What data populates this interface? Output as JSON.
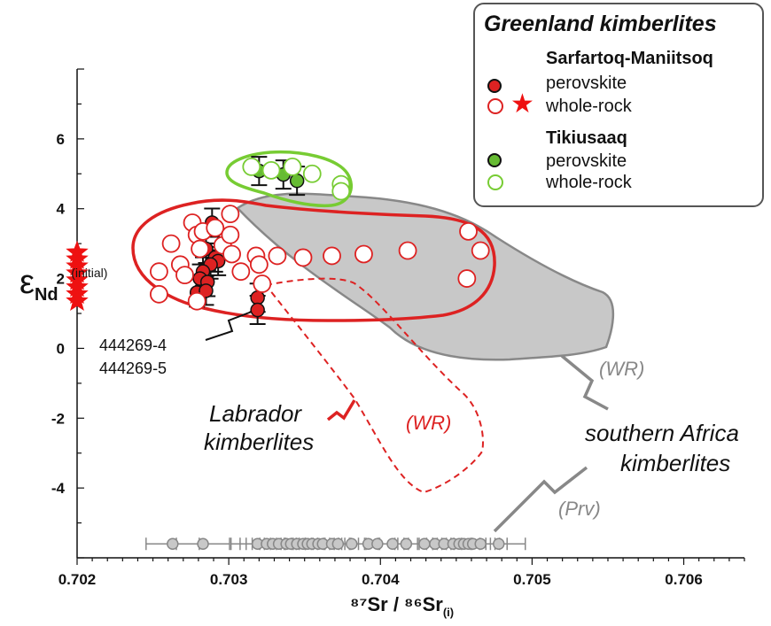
{
  "chart_data": {
    "type": "scatter",
    "xlabel": "⁸⁷Sr / ⁸⁶Sr",
    "xlabel_sub": "(i)",
    "ylabel": "ε",
    "ylabel_sub": "Nd",
    "ylabel_sup": "(initial)",
    "xlim": [
      0.702,
      0.7064
    ],
    "ylim": [
      -6,
      8
    ],
    "xticks": [
      0.702,
      0.703,
      0.704,
      0.705,
      0.706
    ],
    "xtick_labels": [
      "0.702",
      "0.703",
      "0.704",
      "0.705",
      "0.706"
    ],
    "yticks": [
      -4,
      -2,
      0,
      2,
      4,
      6
    ],
    "ytick_labels": [
      "-4",
      "-2",
      "0",
      "2",
      "4",
      "6"
    ],
    "colors": {
      "sarfartoq": "#dd2222",
      "tikiusaaq": "#77cc33",
      "tikiusaaq_fill": "#66bb33",
      "africa": "#888888",
      "africa_fill": "#c8c8c8"
    },
    "legend": {
      "title": "Greenland kimberlites",
      "groups": [
        {
          "name": "Sarfartoq-Maniitsoq",
          "entries": [
            "perovskite",
            "whole-rock"
          ]
        },
        {
          "name": "Tikiusaaq",
          "entries": [
            "perovskite",
            "whole-rock"
          ]
        }
      ],
      "placement": "top-right"
    },
    "annotations": {
      "samples": [
        "444269-4",
        "444269-5"
      ],
      "labrador": [
        "Labrador",
        "kimberlites"
      ],
      "labrador_wr": "(WR)",
      "africa": [
        "southern Africa",
        "kimberlites"
      ],
      "africa_wr": "(WR)",
      "africa_prv": "(Prv)"
    },
    "series": [
      {
        "name": "Sarfartoq-Maniitsoq perovskite",
        "marker": "filled-circle",
        "points": [
          [
            0.70289,
            3.6
          ],
          [
            0.70285,
            2.85
          ],
          [
            0.70291,
            2.6
          ],
          [
            0.70293,
            2.5
          ],
          [
            0.70288,
            2.4
          ],
          [
            0.70283,
            2.2
          ],
          [
            0.70281,
            2.0
          ],
          [
            0.70286,
            1.9
          ],
          [
            0.70279,
            1.6
          ],
          [
            0.70285,
            1.65
          ],
          [
            0.70319,
            1.45
          ],
          [
            0.70319,
            1.1
          ]
        ]
      },
      {
        "name": "Sarfartoq-Maniitsoq whole-rock",
        "marker": "open-circle",
        "points": [
          [
            0.70254,
            2.2
          ],
          [
            0.70262,
            3.0
          ],
          [
            0.70268,
            2.4
          ],
          [
            0.70276,
            3.6
          ],
          [
            0.70279,
            3.25
          ],
          [
            0.70281,
            2.85
          ],
          [
            0.70283,
            3.35
          ],
          [
            0.70271,
            2.1
          ],
          [
            0.70279,
            1.35
          ],
          [
            0.70291,
            3.45
          ],
          [
            0.70296,
            2.95
          ],
          [
            0.70301,
            3.85
          ],
          [
            0.70301,
            3.25
          ],
          [
            0.70302,
            2.7
          ],
          [
            0.70308,
            2.2
          ],
          [
            0.70318,
            2.65
          ],
          [
            0.7032,
            2.4
          ],
          [
            0.70322,
            1.85
          ],
          [
            0.70332,
            2.65
          ],
          [
            0.70349,
            2.6
          ],
          [
            0.70368,
            2.65
          ],
          [
            0.70389,
            2.7
          ],
          [
            0.70418,
            2.8
          ],
          [
            0.70458,
            3.35
          ],
          [
            0.70466,
            2.8
          ],
          [
            0.70457,
            2.0
          ],
          [
            0.70254,
            1.55
          ]
        ]
      },
      {
        "name": "Sarfartoq-Maniitsoq whole-rock (star)",
        "marker": "star",
        "points": [
          [
            0.702,
            2.75
          ],
          [
            0.702,
            2.55
          ],
          [
            0.702,
            2.35
          ],
          [
            0.702,
            2.15
          ],
          [
            0.702,
            1.95
          ],
          [
            0.702,
            1.75
          ],
          [
            0.702,
            1.55
          ],
          [
            0.702,
            1.35
          ]
        ]
      },
      {
        "name": "Tikiusaaq perovskite",
        "marker": "filled-circle",
        "points": [
          [
            0.7032,
            5.08
          ],
          [
            0.70336,
            4.98
          ],
          [
            0.70345,
            4.8
          ]
        ]
      },
      {
        "name": "Tikiusaaq whole-rock",
        "marker": "open-circle",
        "points": [
          [
            0.70315,
            5.2
          ],
          [
            0.70328,
            5.1
          ],
          [
            0.70342,
            5.2
          ],
          [
            0.70355,
            5.0
          ],
          [
            0.70374,
            4.7
          ],
          [
            0.70374,
            4.5
          ]
        ]
      },
      {
        "name": "southern Africa perovskite",
        "marker": "grey-circle-row",
        "y": -5.6,
        "points": [
          0.70263,
          0.70283,
          0.70319,
          0.70325,
          0.70329,
          0.70333,
          0.70338,
          0.70341,
          0.70345,
          0.70349,
          0.70352,
          0.70355,
          0.70359,
          0.70362,
          0.70368,
          0.70372,
          0.70381,
          0.70392,
          0.70398,
          0.70408,
          0.70417,
          0.70429,
          0.70436,
          0.70442,
          0.70448,
          0.70452,
          0.70455,
          0.70458,
          0.70461,
          0.70466,
          0.70478
        ]
      }
    ]
  }
}
